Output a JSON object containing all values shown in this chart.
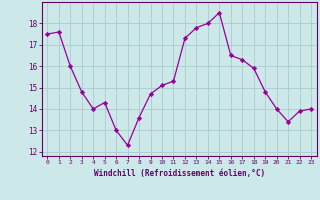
{
  "x": [
    0,
    1,
    2,
    3,
    4,
    5,
    6,
    7,
    8,
    9,
    10,
    11,
    12,
    13,
    14,
    15,
    16,
    17,
    18,
    19,
    20,
    21,
    22,
    23
  ],
  "y": [
    17.5,
    17.6,
    16.0,
    14.8,
    14.0,
    14.3,
    13.0,
    12.3,
    13.6,
    14.7,
    15.1,
    15.3,
    17.3,
    17.8,
    18.0,
    18.5,
    16.5,
    16.3,
    15.9,
    14.8,
    14.0,
    13.4,
    13.9,
    14.0
  ],
  "line_color": "#990099",
  "marker": "D",
  "marker_size": 2.2,
  "bg_color": "#cce8e8",
  "grid_color": "#aacccc",
  "xlabel": "Windchill (Refroidissement éolien,°C)",
  "xlabel_color": "#660066",
  "tick_color": "#660066",
  "ylim": [
    11.8,
    19.0
  ],
  "xlim": [
    -0.5,
    23.5
  ],
  "yticks": [
    12,
    13,
    14,
    15,
    16,
    17,
    18
  ],
  "xticks": [
    0,
    1,
    2,
    3,
    4,
    5,
    6,
    7,
    8,
    9,
    10,
    11,
    12,
    13,
    14,
    15,
    16,
    17,
    18,
    19,
    20,
    21,
    22,
    23
  ],
  "spine_color": "#660066"
}
